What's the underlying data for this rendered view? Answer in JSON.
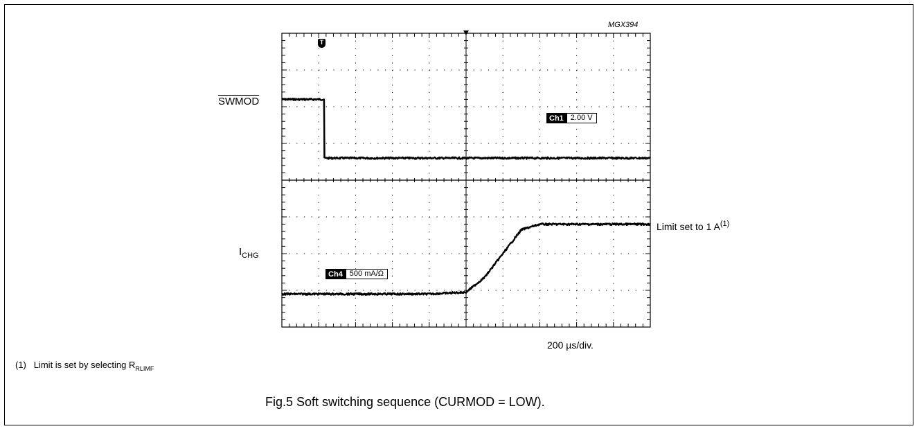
{
  "figure_code": "MGX394",
  "caption": "Fig.5  Soft switching sequence (CURMOD = LOW).",
  "footnote": {
    "marker": "(1)",
    "text": "Limit is set by selecting R",
    "subscript": "RLIMF"
  },
  "trigger_marker": "T",
  "signals": {
    "top": {
      "label": "SWMOD",
      "overline": true
    },
    "bottom": {
      "label_main": "I",
      "label_sub": "CHG"
    }
  },
  "channels": [
    {
      "name": "Ch1",
      "scale": "2.00 V"
    },
    {
      "name": "Ch4",
      "scale": "500 mA/Ω"
    }
  ],
  "annotation": {
    "text": "Limit set to 1 A",
    "superscript": "(1)"
  },
  "timebase": "200 µs/div.",
  "chart_data": {
    "type": "line",
    "x_divisions": 10,
    "y_divisions": 8,
    "x_unit": "div",
    "series": [
      {
        "x": [
          0,
          1.15,
          1.15,
          2,
          4,
          6,
          8,
          10
        ],
        "y": [
          6.2,
          6.2,
          4.6,
          4.6,
          4.6,
          4.6,
          4.6,
          4.6
        ]
      },
      {
        "x": [
          0,
          2,
          4,
          5,
          5.5,
          6,
          6.5,
          7,
          8,
          10
        ],
        "y": [
          0.9,
          0.9,
          0.9,
          0.95,
          1.35,
          2.0,
          2.65,
          2.8,
          2.8,
          2.8
        ]
      }
    ]
  }
}
